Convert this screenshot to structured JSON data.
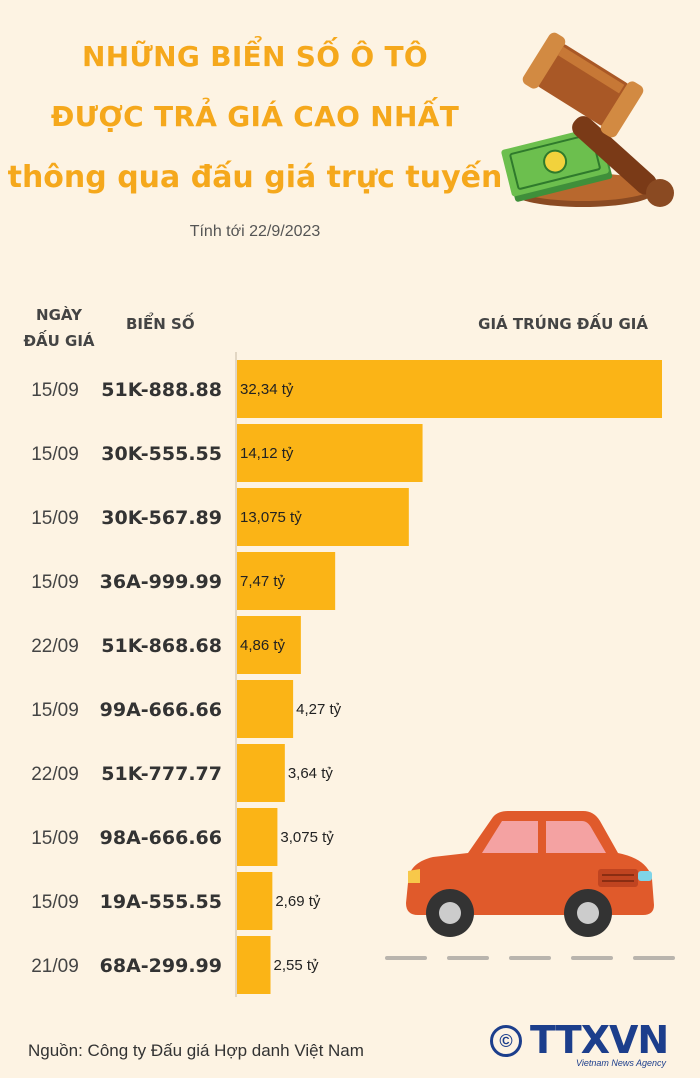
{
  "header": {
    "title_line1": "NHỮNG BIỂN SỐ Ô TÔ",
    "title_line2": "ĐƯỢC TRẢ GIÁ CAO NHẤT",
    "title_line3": "thông qua đấu giá trực tuyến",
    "as_of": "Tính tới 22/9/2023"
  },
  "columns": {
    "date_line1": "NGÀY",
    "date_line2": "ĐẤU GIÁ",
    "plate": "BIỂN SỐ",
    "price": "GIÁ TRÚNG ĐẤU GIÁ"
  },
  "chart_data": {
    "type": "bar",
    "orientation": "horizontal",
    "categories": [
      "51K-888.88",
      "30K-555.55",
      "30K-567.89",
      "36A-999.99",
      "51K-868.68",
      "99A-666.66",
      "51K-777.77",
      "98A-666.66",
      "19A-555.55",
      "68A-299.99"
    ],
    "dates": [
      "15/09",
      "15/09",
      "15/09",
      "15/09",
      "22/09",
      "15/09",
      "22/09",
      "15/09",
      "15/09",
      "21/09"
    ],
    "values": [
      32.34,
      14.12,
      13.075,
      7.47,
      4.86,
      4.27,
      3.64,
      3.075,
      2.69,
      2.55
    ],
    "value_labels": [
      "32,34 tỷ",
      "14,12 tỷ",
      "13,075 tỷ",
      "7,47 tỷ",
      "4,86 tỷ",
      "4,27 tỷ",
      "3,64 tỷ",
      "3,075 tỷ",
      "2,69 tỷ",
      "2,55 tỷ"
    ],
    "unit": "tỷ",
    "bar_color": "#fbb416"
  },
  "footer": {
    "source": "Nguồn: Công ty Đấu giá Hợp danh Việt Nam",
    "copyright_symbol": "©",
    "logo_text": "TTXVN",
    "logo_subtitle": "Vietnam News Agency"
  },
  "colors": {
    "title": "#f5a81c",
    "background": "#fdf3e3",
    "logo": "#1c3e8c"
  }
}
